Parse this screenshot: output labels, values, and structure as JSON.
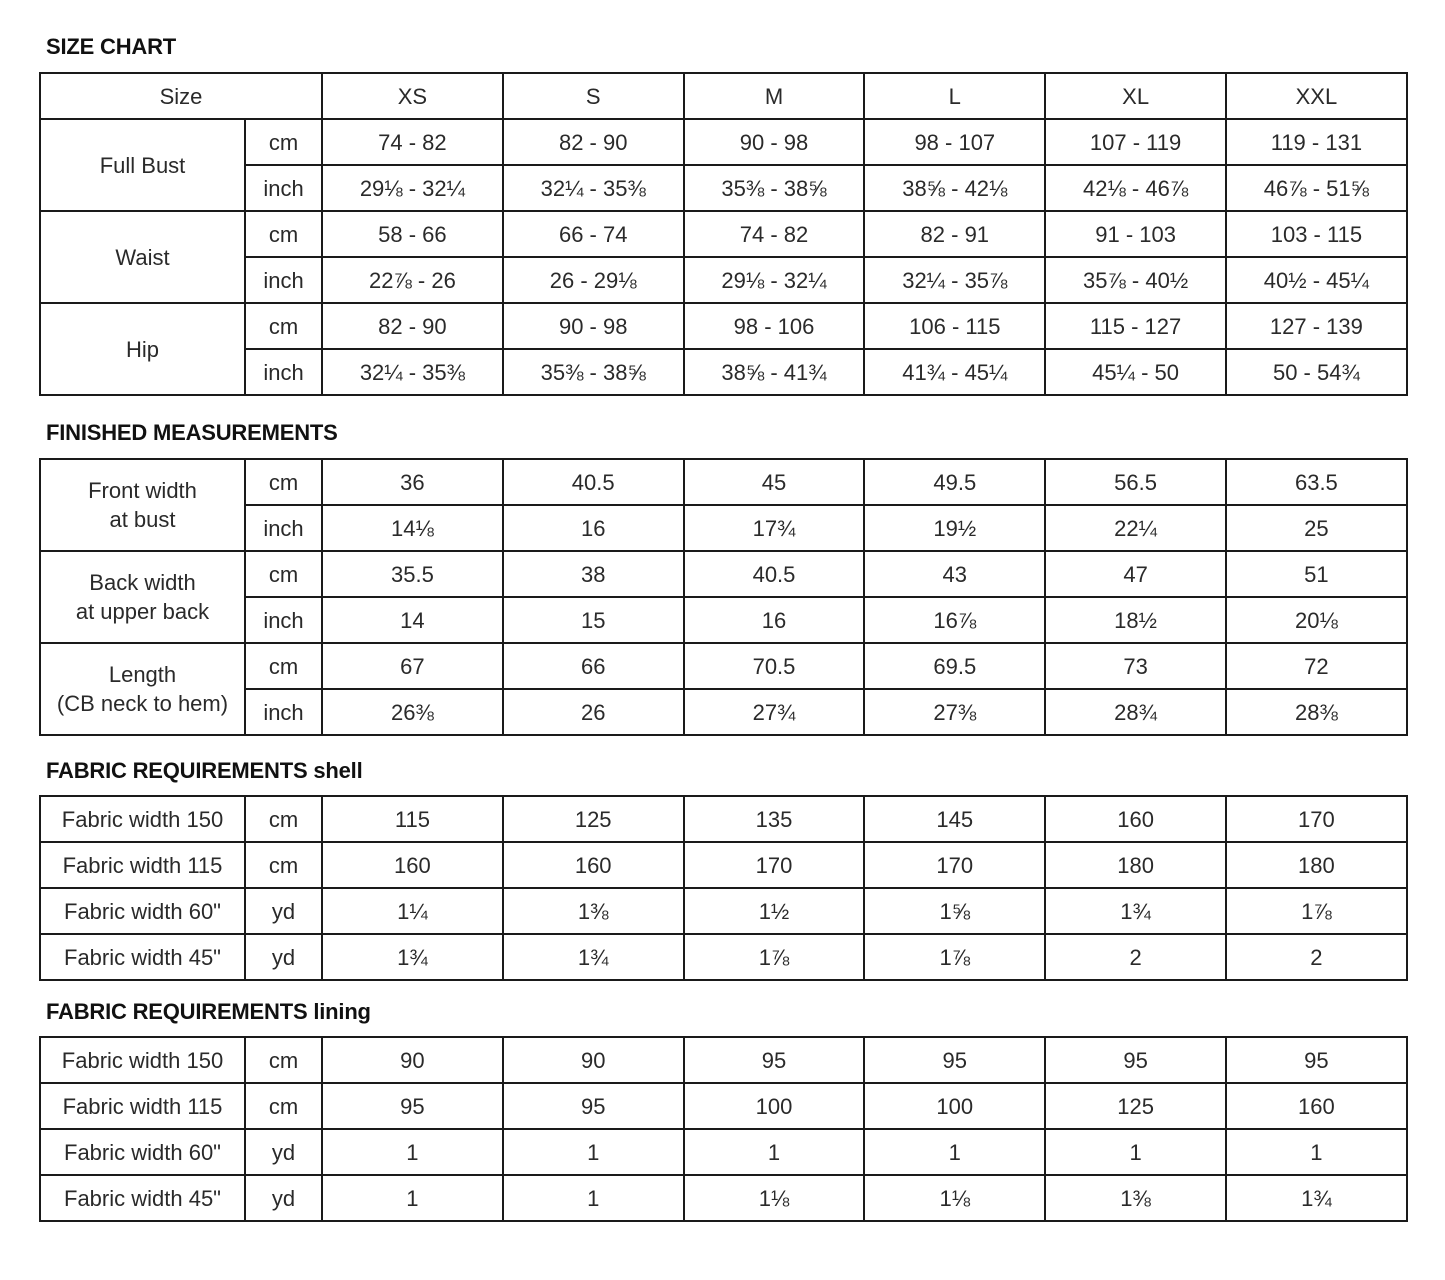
{
  "sizes": [
    "XS",
    "S",
    "M",
    "L",
    "XL",
    "XXL"
  ],
  "tables": [
    {
      "title": "SIZE CHART",
      "header_label": "Size",
      "groups": [
        {
          "label": "Full Bust",
          "rows": [
            {
              "unit": "cm",
              "values": [
                "74 - 82",
                "82 - 90",
                "90 - 98",
                "98 - 107",
                "107 - 119",
                "119 - 131"
              ]
            },
            {
              "unit": "inch",
              "values": [
                "29⅛ - 32¼",
                "32¼ - 35⅜",
                "35⅜ - 38⅝",
                "38⅝ - 42⅛",
                "42⅛ - 46⅞",
                "46⅞ - 51⅝"
              ]
            }
          ]
        },
        {
          "label": "Waist",
          "rows": [
            {
              "unit": "cm",
              "values": [
                "58 - 66",
                "66 - 74",
                "74 - 82",
                "82 - 91",
                "91 - 103",
                "103 - 115"
              ]
            },
            {
              "unit": "inch",
              "values": [
                "22⅞ - 26",
                "26 - 29⅛",
                "29⅛ - 32¼",
                "32¼ - 35⅞",
                "35⅞ - 40½",
                "40½ - 45¼"
              ]
            }
          ]
        },
        {
          "label": "Hip",
          "rows": [
            {
              "unit": "cm",
              "values": [
                "82 - 90",
                "90 - 98",
                "98 - 106",
                "106 - 115",
                "115 - 127",
                "127 - 139"
              ]
            },
            {
              "unit": "inch",
              "values": [
                "32¼ - 35⅜",
                "35⅜ - 38⅝",
                "38⅝ - 41¾",
                "41¾ - 45¼",
                "45¼ - 50",
                "50 - 54¾"
              ]
            }
          ]
        }
      ]
    },
    {
      "title": "FINISHED MEASUREMENTS",
      "groups": [
        {
          "label": "Front width\nat bust",
          "rows": [
            {
              "unit": "cm",
              "values": [
                "36",
                "40.5",
                "45",
                "49.5",
                "56.5",
                "63.5"
              ]
            },
            {
              "unit": "inch",
              "values": [
                "14⅛",
                "16",
                "17¾",
                "19½",
                "22¼",
                "25"
              ]
            }
          ]
        },
        {
          "label": "Back width\nat upper back",
          "rows": [
            {
              "unit": "cm",
              "values": [
                "35.5",
                "38",
                "40.5",
                "43",
                "47",
                "51"
              ]
            },
            {
              "unit": "inch",
              "values": [
                "14",
                "15",
                "16",
                "16⅞",
                "18½",
                "20⅛"
              ]
            }
          ]
        },
        {
          "label": "Length\n(CB neck to hem)",
          "rows": [
            {
              "unit": "cm",
              "values": [
                "67",
                "66",
                "70.5",
                "69.5",
                "73",
                "72"
              ]
            },
            {
              "unit": "inch",
              "values": [
                "26⅜",
                "26",
                "27¾",
                "27⅜",
                "28¾",
                "28⅜"
              ]
            }
          ]
        }
      ]
    },
    {
      "title": "FABRIC REQUIREMENTS shell",
      "groups": [
        {
          "label": "Fabric width 150",
          "rows": [
            {
              "unit": "cm",
              "values": [
                "115",
                "125",
                "135",
                "145",
                "160",
                "170"
              ]
            }
          ]
        },
        {
          "label": "Fabric width 115",
          "rows": [
            {
              "unit": "cm",
              "values": [
                "160",
                "160",
                "170",
                "170",
                "180",
                "180"
              ]
            }
          ]
        },
        {
          "label": "Fabric width 60\"",
          "rows": [
            {
              "unit": "yd",
              "values": [
                "1¼",
                "1⅜",
                "1½",
                "1⅝",
                "1¾",
                "1⅞"
              ]
            }
          ]
        },
        {
          "label": "Fabric width 45\"",
          "rows": [
            {
              "unit": "yd",
              "values": [
                "1¾",
                "1¾",
                "1⅞",
                "1⅞",
                "2",
                "2"
              ]
            }
          ]
        }
      ]
    },
    {
      "title": "FABRIC REQUIREMENTS lining",
      "groups": [
        {
          "label": "Fabric width 150",
          "rows": [
            {
              "unit": "cm",
              "values": [
                "90",
                "90",
                "95",
                "95",
                "95",
                "95"
              ]
            }
          ]
        },
        {
          "label": "Fabric width 115",
          "rows": [
            {
              "unit": "cm",
              "values": [
                "95",
                "95",
                "100",
                "100",
                "125",
                "160"
              ]
            }
          ]
        },
        {
          "label": "Fabric width 60\"",
          "rows": [
            {
              "unit": "yd",
              "values": [
                "1",
                "1",
                "1",
                "1",
                "1",
                "1"
              ]
            }
          ]
        },
        {
          "label": "Fabric width 45\"",
          "rows": [
            {
              "unit": "yd",
              "values": [
                "1",
                "1",
                "1⅛",
                "1⅛",
                "1⅜",
                "1¾"
              ]
            }
          ]
        }
      ]
    }
  ]
}
